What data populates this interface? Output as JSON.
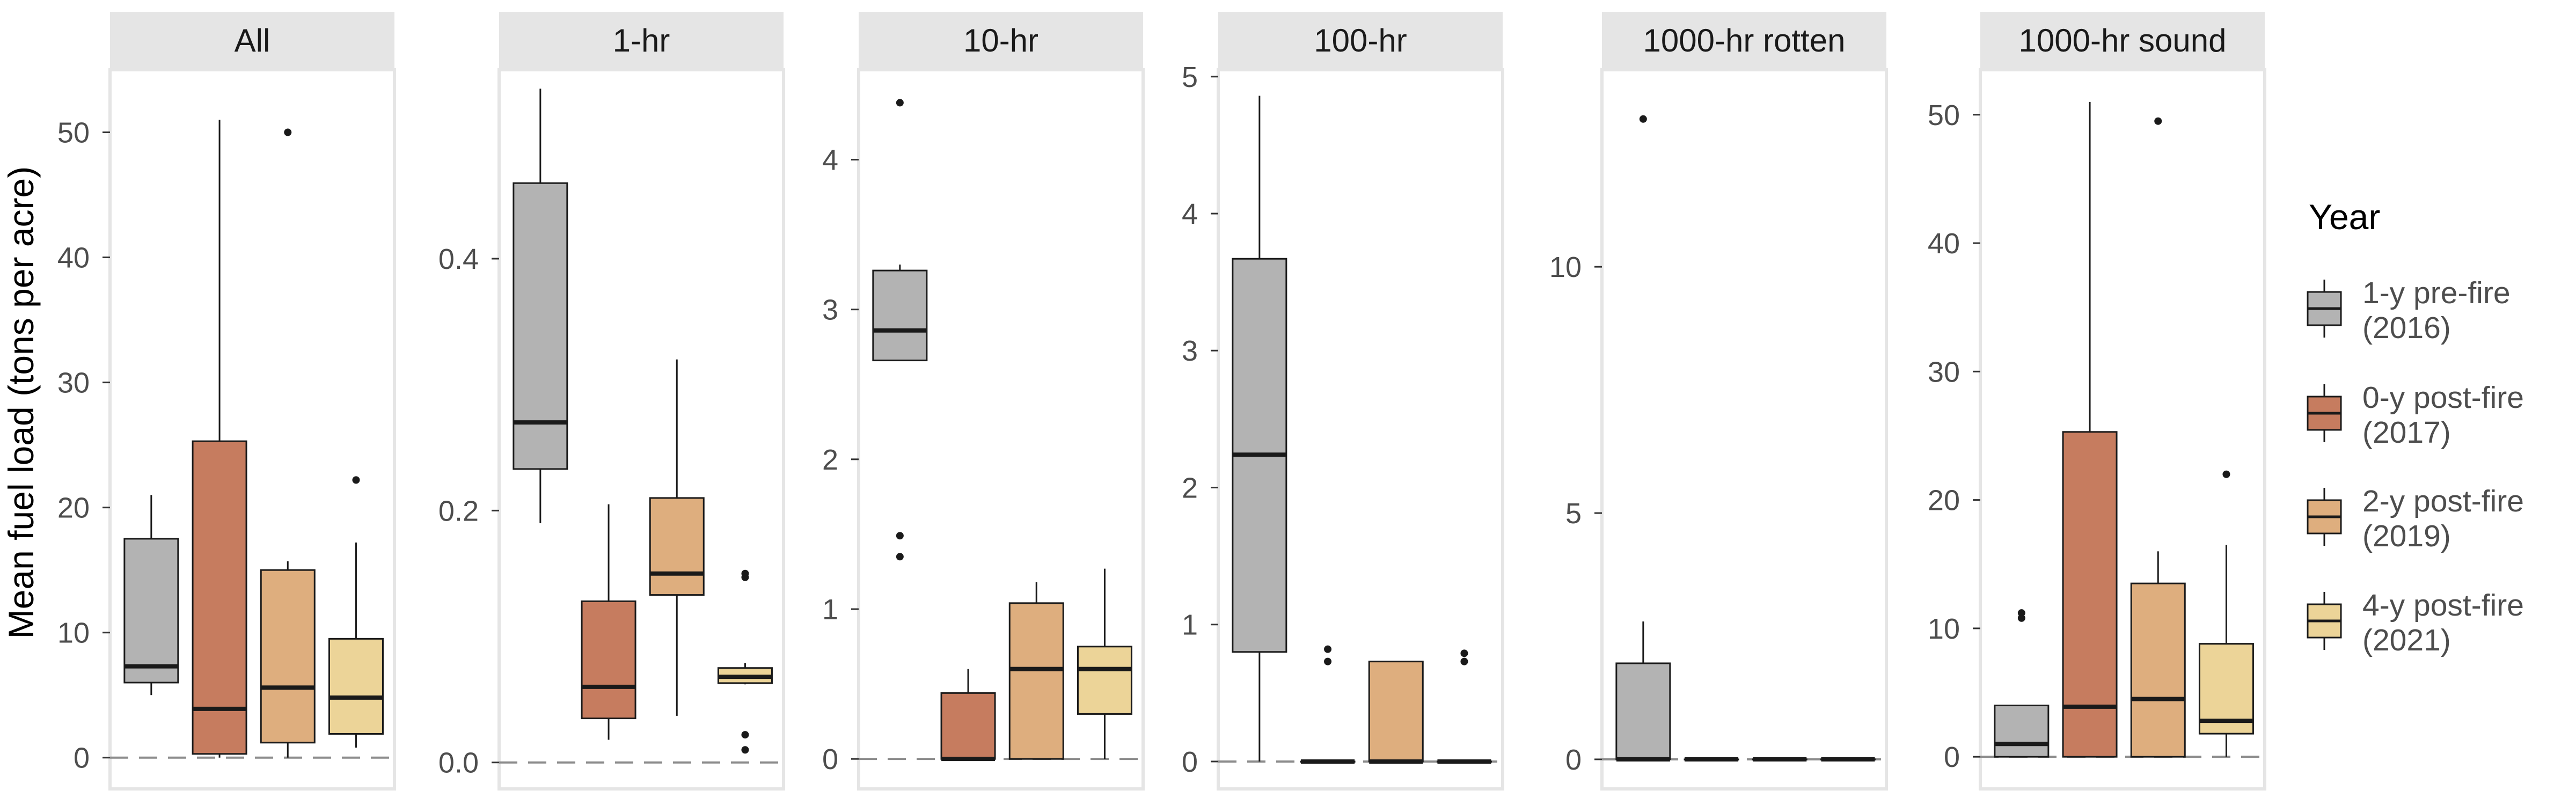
{
  "chart_data": {
    "type": "boxplot",
    "ylabel": "Mean fuel load (tons per acre)",
    "legend": {
      "title": "Year",
      "placement": "right",
      "items": [
        {
          "line1": "1-y pre-fire",
          "line2": "(2016)",
          "color": "#b3b3b3"
        },
        {
          "line1": "0-y post-fire",
          "line2": "(2017)",
          "color": "#c67c5f"
        },
        {
          "line1": "2-y post-fire",
          "line2": "(2019)",
          "color": "#deae7e"
        },
        {
          "line1": "4-y post-fire",
          "line2": "(2021)",
          "color": "#ecd498"
        }
      ]
    },
    "reference_line": {
      "y": 0,
      "style": "dashed"
    },
    "facets": [
      {
        "title": "All",
        "ylim": [
          -2.5,
          55
        ],
        "ticks": [
          0,
          10,
          20,
          30,
          40,
          50
        ],
        "tick_labels": [
          "0",
          "10",
          "20",
          "30",
          "40",
          "50"
        ],
        "boxes": [
          {
            "q1": 6,
            "median": 7.3,
            "q3": 17.5,
            "lo": 5,
            "hi": 21,
            "outliers": []
          },
          {
            "q1": 0.3,
            "median": 3.9,
            "q3": 25.3,
            "lo": 0,
            "hi": 51,
            "outliers": []
          },
          {
            "q1": 1.2,
            "median": 5.6,
            "q3": 15,
            "lo": 0,
            "hi": 15.7,
            "outliers": [
              50
            ]
          },
          {
            "q1": 1.9,
            "median": 4.8,
            "q3": 9.5,
            "lo": 0.8,
            "hi": 17.2,
            "outliers": [
              22.2
            ]
          }
        ]
      },
      {
        "title": "1-hr",
        "ylim": [
          -0.021,
          0.55
        ],
        "ticks": [
          0,
          0.2,
          0.4
        ],
        "tick_labels": [
          "0.0",
          "0.2",
          "0.4"
        ],
        "boxes": [
          {
            "q1": 0.233,
            "median": 0.27,
            "q3": 0.46,
            "lo": 0.19,
            "hi": 0.535,
            "outliers": []
          },
          {
            "q1": 0.035,
            "median": 0.06,
            "q3": 0.128,
            "lo": 0.018,
            "hi": 0.205,
            "outliers": []
          },
          {
            "q1": 0.133,
            "median": 0.15,
            "q3": 0.21,
            "lo": 0.037,
            "hi": 0.32,
            "outliers": []
          },
          {
            "q1": 0.063,
            "median": 0.068,
            "q3": 0.075,
            "lo": 0.062,
            "hi": 0.079,
            "outliers": [
              0.15,
              0.147,
              0.022,
              0.01
            ]
          }
        ]
      },
      {
        "title": "10-hr",
        "ylim": [
          -0.2,
          4.6
        ],
        "ticks": [
          0,
          1,
          2,
          3,
          4
        ],
        "tick_labels": [
          "0",
          "1",
          "2",
          "3",
          "4"
        ],
        "boxes": [
          {
            "q1": 2.66,
            "median": 2.86,
            "q3": 3.26,
            "lo": 2.66,
            "hi": 3.3,
            "outliers": [
              4.38,
              1.49,
              1.35
            ]
          },
          {
            "q1": 0,
            "median": 0,
            "q3": 0.44,
            "lo": 0,
            "hi": 0.6,
            "outliers": []
          },
          {
            "q1": 0,
            "median": 0.6,
            "q3": 1.04,
            "lo": 0,
            "hi": 1.18,
            "outliers": []
          },
          {
            "q1": 0.3,
            "median": 0.6,
            "q3": 0.75,
            "lo": 0,
            "hi": 1.27,
            "outliers": []
          }
        ]
      },
      {
        "title": "100-hr",
        "ylim": [
          -0.2,
          5.05
        ],
        "ticks": [
          0,
          1,
          2,
          3,
          4,
          5
        ],
        "tick_labels": [
          "0",
          "1",
          "2",
          "3",
          "4",
          "5"
        ],
        "boxes": [
          {
            "q1": 0.8,
            "median": 2.24,
            "q3": 3.67,
            "lo": 0,
            "hi": 4.86,
            "outliers": []
          },
          {
            "q1": 0,
            "median": 0,
            "q3": 0,
            "lo": 0,
            "hi": 0,
            "outliers": [
              0.82,
              0.73
            ]
          },
          {
            "q1": 0,
            "median": 0,
            "q3": 0.73,
            "lo": 0,
            "hi": 0.73,
            "outliers": []
          },
          {
            "q1": 0,
            "median": 0,
            "q3": 0,
            "lo": 0,
            "hi": 0,
            "outliers": [
              0.79,
              0.73
            ]
          }
        ]
      },
      {
        "title": "1000-hr rotten",
        "ylim": [
          -0.6,
          14
        ],
        "ticks": [
          0,
          5,
          10
        ],
        "tick_labels": [
          "0",
          "5",
          "10"
        ],
        "boxes": [
          {
            "q1": 0,
            "median": 0,
            "q3": 1.95,
            "lo": 0,
            "hi": 2.8,
            "outliers": [
              13
            ]
          },
          {
            "q1": 0,
            "median": 0,
            "q3": 0,
            "lo": 0,
            "hi": 0,
            "outliers": []
          },
          {
            "q1": 0,
            "median": 0,
            "q3": 0,
            "lo": 0,
            "hi": 0,
            "outliers": []
          },
          {
            "q1": 0,
            "median": 0,
            "q3": 0,
            "lo": 0,
            "hi": 0,
            "outliers": []
          }
        ]
      },
      {
        "title": "1000-hr sound",
        "ylim": [
          -2.5,
          53.5
        ],
        "ticks": [
          0,
          10,
          20,
          30,
          40,
          50
        ],
        "tick_labels": [
          "0",
          "10",
          "20",
          "30",
          "40",
          "50"
        ],
        "boxes": [
          {
            "q1": 0,
            "median": 1,
            "q3": 4,
            "lo": 0,
            "hi": 4,
            "outliers": [
              11.2,
              10.8
            ]
          },
          {
            "q1": 0,
            "median": 3.9,
            "q3": 25.3,
            "lo": 0,
            "hi": 51,
            "outliers": []
          },
          {
            "q1": 0,
            "median": 4.5,
            "q3": 13.5,
            "lo": 0,
            "hi": 16,
            "outliers": [
              49.5
            ]
          },
          {
            "q1": 1.8,
            "median": 2.8,
            "q3": 8.8,
            "lo": 0,
            "hi": 16.5,
            "outliers": [
              22
            ]
          }
        ]
      }
    ]
  }
}
